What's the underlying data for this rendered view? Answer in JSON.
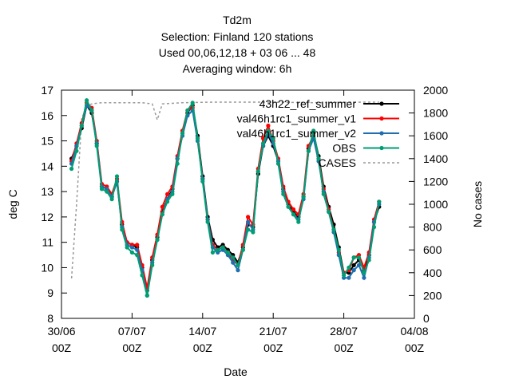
{
  "title_lines": [
    "Td2m",
    "Selection: Finland     120 stations",
    "Used  00,06,12,18  + 03 06 ... 48",
    "Averaging window:  6h"
  ],
  "chart_data": {
    "type": "line",
    "xlabel": "Date",
    "ylabel": "deg C",
    "y2label": "No cases",
    "x_range": [
      "2023-06-30 00Z",
      "2023-08-04 00Z"
    ],
    "ylim": [
      8,
      17
    ],
    "y2lim": [
      0,
      2000
    ],
    "x_ticks": [
      {
        "date": "2023-06-30",
        "line1": "30/06",
        "line2": "00Z"
      },
      {
        "date": "2023-07-07",
        "line1": "07/07",
        "line2": "00Z"
      },
      {
        "date": "2023-07-14",
        "line1": "14/07",
        "line2": "00Z"
      },
      {
        "date": "2023-07-21",
        "line1": "21/07",
        "line2": "00Z"
      },
      {
        "date": "2023-07-28",
        "line1": "28/07",
        "line2": "00Z"
      },
      {
        "date": "2023-08-04",
        "line1": "04/08",
        "line2": "00Z"
      }
    ],
    "y_ticks": [
      "8",
      "9",
      "10",
      "11",
      "12",
      "13",
      "14",
      "15",
      "16",
      "17"
    ],
    "y2_ticks": [
      "0",
      "200",
      "400",
      "600",
      "800",
      "1000",
      "1200",
      "1400",
      "1600",
      "1800",
      "2000"
    ],
    "legend_position": "top-right",
    "x_days": [
      1.0,
      1.5,
      2.0,
      2.5,
      3.0,
      3.5,
      4.0,
      4.5,
      5.0,
      5.5,
      6.0,
      6.5,
      7.0,
      7.5,
      8.0,
      8.5,
      9.0,
      9.5,
      10.0,
      10.5,
      11.0,
      11.5,
      12.0,
      12.5,
      13.0,
      13.5,
      14.0,
      14.5,
      15.0,
      15.5,
      16.0,
      16.5,
      17.0,
      17.5,
      18.0,
      18.5,
      19.0,
      19.5,
      20.0,
      20.5,
      21.0,
      21.5,
      22.0,
      22.5,
      23.0,
      23.5,
      24.0,
      24.5,
      25.0,
      25.5,
      26.0,
      26.5,
      27.0,
      27.5,
      28.0,
      28.5,
      29.0,
      29.5,
      30.0,
      30.5,
      31.0,
      31.5
    ],
    "series": [
      {
        "name": "43h22_ref_summer",
        "color": "#000000",
        "values": [
          14.3,
          14.8,
          15.5,
          16.4,
          16.1,
          14.9,
          13.2,
          13.1,
          12.8,
          13.4,
          11.7,
          11.0,
          10.9,
          10.8,
          10.0,
          9.1,
          10.3,
          11.2,
          12.2,
          12.7,
          13.1,
          14.3,
          15.3,
          16.1,
          16.4,
          15.2,
          13.6,
          12.0,
          11.1,
          10.8,
          10.9,
          10.7,
          10.5,
          10.2,
          10.8,
          11.7,
          11.6,
          13.7,
          14.8,
          15.2,
          14.8,
          14.2,
          13.1,
          12.5,
          12.2,
          12.0,
          12.8,
          14.7,
          15.3,
          14.4,
          13.2,
          12.4,
          11.7,
          10.8,
          9.8,
          9.8,
          10.1,
          10.3,
          9.9,
          10.5,
          11.8,
          12.4
        ]
      },
      {
        "name": "val46h1rc1_summer_v1",
        "color": "#ff0000",
        "values": [
          14.2,
          14.9,
          15.7,
          16.5,
          16.3,
          15.0,
          13.3,
          13.2,
          12.9,
          13.5,
          11.8,
          11.0,
          10.9,
          10.9,
          10.1,
          9.2,
          10.4,
          11.3,
          12.4,
          12.9,
          13.2,
          14.4,
          15.4,
          16.2,
          16.3,
          15.1,
          13.5,
          11.9,
          10.9,
          10.7,
          10.8,
          10.6,
          10.3,
          10.1,
          10.9,
          12.0,
          11.7,
          13.9,
          15.1,
          15.6,
          15.0,
          14.3,
          13.2,
          12.6,
          12.3,
          12.1,
          12.9,
          14.8,
          15.2,
          14.3,
          13.1,
          12.3,
          11.5,
          10.6,
          9.8,
          9.9,
          10.4,
          10.5,
          10.0,
          10.6,
          11.9,
          12.6
        ]
      },
      {
        "name": "val46h1rc1_summer_v2",
        "color": "#1f6fb0",
        "values": [
          14.1,
          14.8,
          15.6,
          16.4,
          16.2,
          14.9,
          13.2,
          13.1,
          12.8,
          13.4,
          11.6,
          10.9,
          10.8,
          10.7,
          9.9,
          8.9,
          10.2,
          11.1,
          12.1,
          12.7,
          13.0,
          14.3,
          15.2,
          16.0,
          16.2,
          15.0,
          13.5,
          11.9,
          10.8,
          10.6,
          10.7,
          10.5,
          10.2,
          9.9,
          10.7,
          11.8,
          11.5,
          13.8,
          14.8,
          15.3,
          14.9,
          14.2,
          13.0,
          12.4,
          12.1,
          11.9,
          12.7,
          14.6,
          15.1,
          14.2,
          13.0,
          12.2,
          11.4,
          10.5,
          9.6,
          9.6,
          9.9,
          10.1,
          9.6,
          10.4,
          11.8,
          12.5
        ]
      },
      {
        "name": "OBS",
        "color": "#009e73",
        "values": [
          13.9,
          14.6,
          15.6,
          16.6,
          16.2,
          14.8,
          13.1,
          13.0,
          12.7,
          13.6,
          11.5,
          10.8,
          10.6,
          10.5,
          9.7,
          8.9,
          10.1,
          11.1,
          12.1,
          12.6,
          12.9,
          14.1,
          15.3,
          16.2,
          16.5,
          15.1,
          13.4,
          11.8,
          10.6,
          10.7,
          10.8,
          10.6,
          10.4,
          10.1,
          10.7,
          11.5,
          11.4,
          13.8,
          14.9,
          15.4,
          15.1,
          14.1,
          12.9,
          12.4,
          12.1,
          11.8,
          12.8,
          14.6,
          15.4,
          14.3,
          12.9,
          12.2,
          11.5,
          10.7,
          9.7,
          10.0,
          10.4,
          10.4,
          9.8,
          10.3,
          11.6,
          12.6
        ]
      }
    ],
    "cases": {
      "name": "CASES",
      "color": "#999999",
      "axis": "y2",
      "x_days": [
        1.0,
        1.5,
        2.0,
        2.5,
        3.0,
        3.5,
        4.0,
        6.0,
        8.0,
        9.0,
        9.5,
        10.0,
        12.0,
        15.0,
        20.0,
        25.0,
        30.0,
        31.5
      ],
      "values": [
        350,
        1000,
        1750,
        1860,
        1880,
        1885,
        1890,
        1890,
        1890,
        1880,
        1740,
        1880,
        1890,
        1895,
        1895,
        1890,
        1895,
        1895
      ]
    }
  }
}
